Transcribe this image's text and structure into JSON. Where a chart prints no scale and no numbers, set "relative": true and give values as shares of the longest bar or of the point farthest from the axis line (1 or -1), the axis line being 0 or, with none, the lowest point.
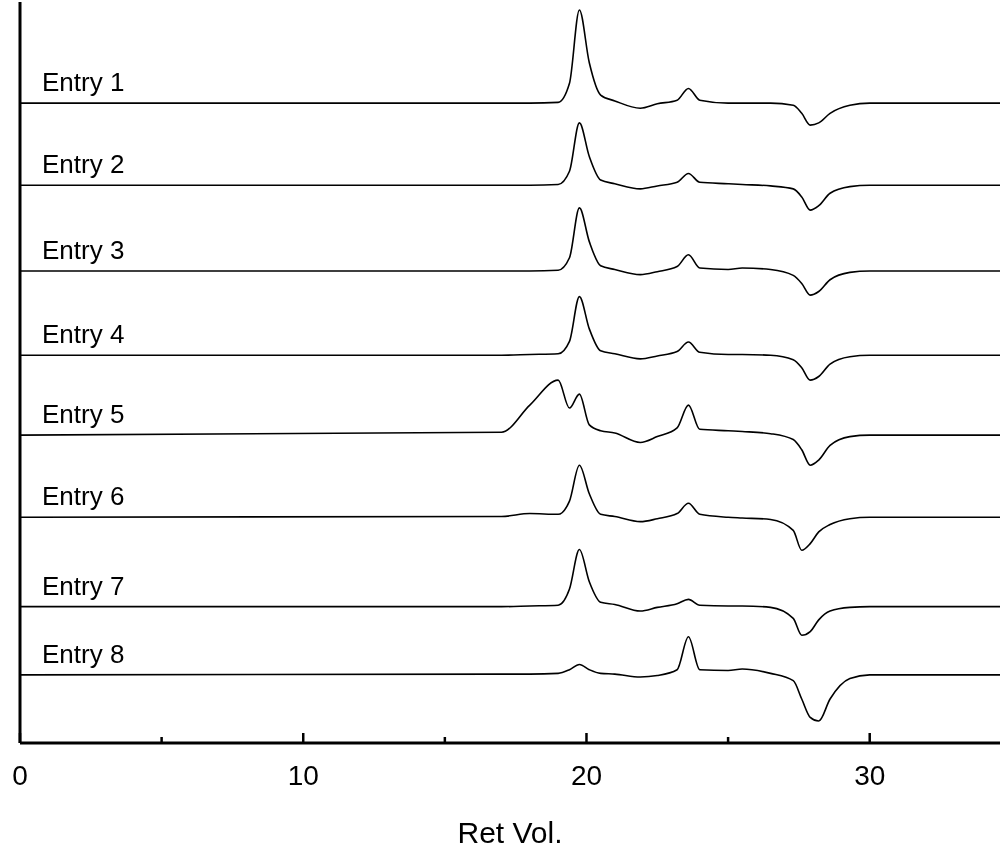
{
  "chart_data": {
    "type": "line",
    "xlabel": "Ret Vol.",
    "relative": true,
    "tick_labels": "x",
    "xlim": [
      0,
      34.6
    ],
    "xticks": [
      0,
      {
        "value": 5,
        "label": null
      },
      10,
      {
        "value": 15,
        "label": null
      },
      20,
      {
        "value": 25,
        "label": null
      },
      30
    ],
    "x": [
      0,
      17,
      18,
      19,
      19.4,
      19.75,
      20.1,
      20.5,
      21,
      21.9,
      22.5,
      23.2,
      23.6,
      24,
      25,
      25.5,
      26.5,
      27.3,
      27.6,
      27.9,
      28.2,
      28.6,
      29.3,
      30,
      34.6
    ],
    "series": [
      {
        "name": "Entry 1",
        "color": "#000000",
        "values": [
          0.873,
          0.873,
          0.873,
          0.874,
          0.9,
          1.0,
          0.928,
          0.884,
          0.876,
          0.866,
          0.872,
          0.877,
          0.893,
          0.877,
          0.873,
          0.873,
          0.873,
          0.87,
          0.859,
          0.843,
          0.846,
          0.859,
          0.87,
          0.873,
          0.873
        ]
      },
      {
        "name": "Entry 2",
        "color": "#000000",
        "values": [
          0.761,
          0.761,
          0.761,
          0.762,
          0.78,
          0.846,
          0.8,
          0.768,
          0.763,
          0.756,
          0.76,
          0.765,
          0.777,
          0.765,
          0.763,
          0.762,
          0.76,
          0.756,
          0.745,
          0.727,
          0.733,
          0.75,
          0.759,
          0.761,
          0.761
        ]
      },
      {
        "name": "Entry 3",
        "color": "#000000",
        "values": [
          0.644,
          0.644,
          0.644,
          0.645,
          0.662,
          0.73,
          0.684,
          0.651,
          0.646,
          0.639,
          0.643,
          0.65,
          0.666,
          0.648,
          0.646,
          0.648,
          0.646,
          0.638,
          0.627,
          0.611,
          0.616,
          0.632,
          0.642,
          0.644,
          0.644
        ]
      },
      {
        "name": "Entry 4",
        "color": "#000000",
        "values": [
          0.529,
          0.529,
          0.53,
          0.531,
          0.548,
          0.609,
          0.565,
          0.535,
          0.531,
          0.524,
          0.528,
          0.534,
          0.547,
          0.533,
          0.53,
          0.53,
          0.529,
          0.523,
          0.512,
          0.495,
          0.5,
          0.517,
          0.527,
          0.529,
          0.529
        ]
      },
      {
        "name": "Entry 5",
        "color": "#000000",
        "values": [
          0.42,
          0.424,
          0.461,
          0.495,
          0.457,
          0.476,
          0.434,
          0.426,
          0.423,
          0.41,
          0.418,
          0.43,
          0.461,
          0.428,
          0.426,
          0.425,
          0.422,
          0.414,
          0.4,
          0.379,
          0.386,
          0.406,
          0.418,
          0.42,
          0.42
        ]
      },
      {
        "name": "Entry 6",
        "color": "#000000",
        "values": [
          0.308,
          0.309,
          0.313,
          0.312,
          0.33,
          0.379,
          0.34,
          0.312,
          0.309,
          0.302,
          0.306,
          0.313,
          0.327,
          0.312,
          0.308,
          0.307,
          0.305,
          0.29,
          0.263,
          0.272,
          0.288,
          0.298,
          0.306,
          0.308,
          0.308
        ]
      },
      {
        "name": "Entry 7",
        "color": "#000000",
        "values": [
          0.186,
          0.186,
          0.187,
          0.188,
          0.21,
          0.264,
          0.22,
          0.192,
          0.189,
          0.18,
          0.185,
          0.19,
          0.196,
          0.188,
          0.187,
          0.187,
          0.185,
          0.17,
          0.147,
          0.152,
          0.168,
          0.18,
          0.185,
          0.186,
          0.186
        ]
      },
      {
        "name": "Entry 8",
        "color": "#000000",
        "values": [
          0.093,
          0.094,
          0.094,
          0.095,
          0.1,
          0.107,
          0.1,
          0.095,
          0.094,
          0.09,
          0.092,
          0.1,
          0.145,
          0.1,
          0.099,
          0.101,
          0.095,
          0.085,
          0.06,
          0.035,
          0.03,
          0.06,
          0.088,
          0.093,
          0.093
        ]
      }
    ]
  }
}
